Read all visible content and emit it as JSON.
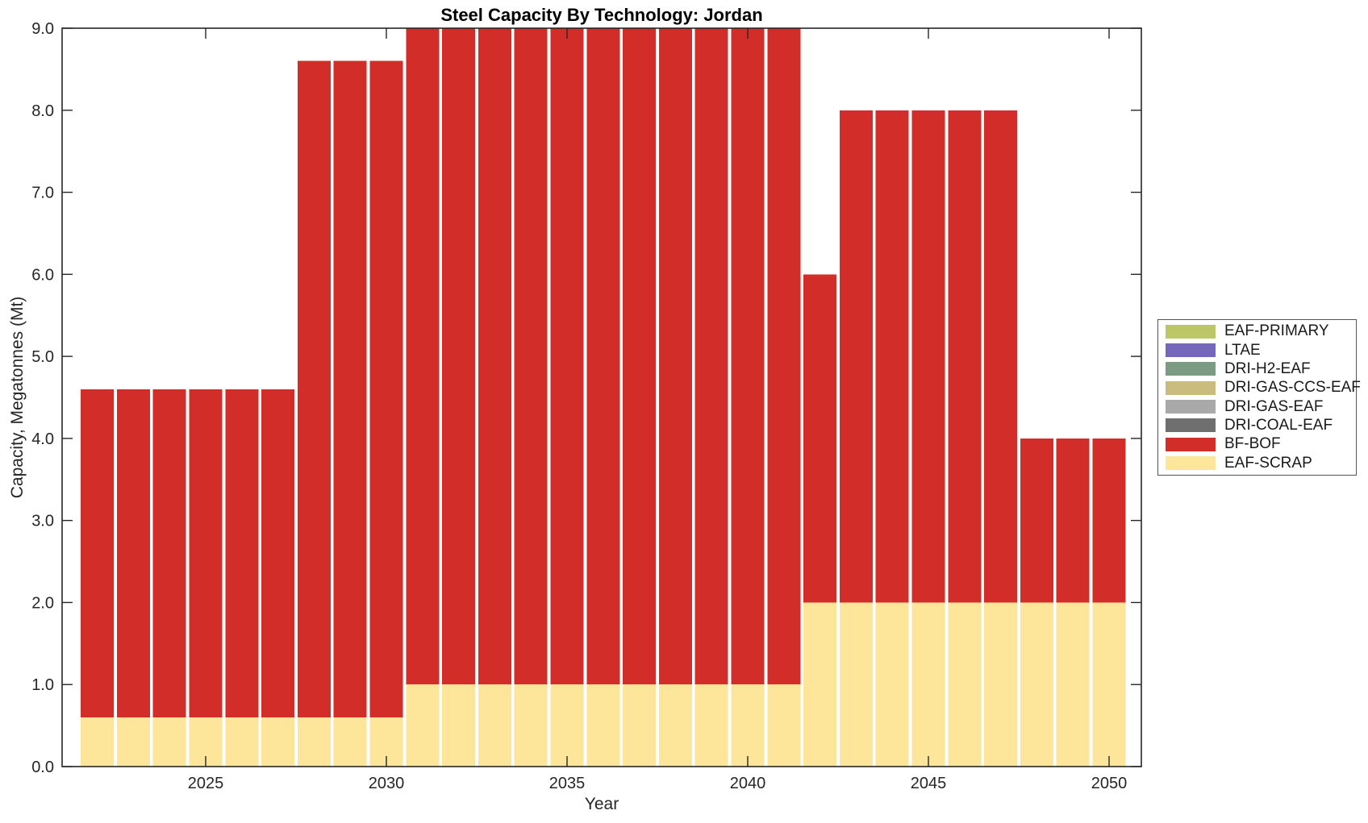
{
  "title": "Steel Capacity By Technology: Jordan",
  "colors": {
    "background": "#ffffff",
    "axis": "#262626",
    "tick_text": "#262626",
    "title_text": "#000000"
  },
  "chart_data": {
    "type": "bar",
    "stacked": true,
    "title": "Steel Capacity By Technology: Jordan",
    "xlabel": "Year",
    "ylabel": "Capacity, Megatonnes (Mt)",
    "x": [
      2022,
      2023,
      2024,
      2025,
      2026,
      2027,
      2028,
      2029,
      2030,
      2031,
      2032,
      2033,
      2034,
      2035,
      2036,
      2037,
      2038,
      2039,
      2040,
      2041,
      2042,
      2043,
      2044,
      2045,
      2046,
      2047,
      2048,
      2049,
      2050
    ],
    "xlim": [
      2021.0,
      2050.9
    ],
    "ylim": [
      0,
      9
    ],
    "yticks": [
      0,
      1,
      2,
      3,
      4,
      5,
      6,
      7,
      8,
      9
    ],
    "ytick_labels": [
      "0.0",
      "1.0",
      "2.0",
      "3.0",
      "4.0",
      "5.0",
      "6.0",
      "7.0",
      "8.0",
      "9.0"
    ],
    "xticks": [
      2025,
      2030,
      2035,
      2040,
      2045,
      2050
    ],
    "xtick_labels": [
      "2025",
      "2030",
      "2035",
      "2040",
      "2045",
      "2050"
    ],
    "grid": false,
    "legend_position": "right-outside",
    "legend_note": "series listed top-to-bottom as in legend; bars stack bottom-to-top in reverse legend order (EAF-SCRAP bottom, BF-BOF above it)",
    "series": [
      {
        "name": "EAF-PRIMARY",
        "color": "#bcc768",
        "values": 0
      },
      {
        "name": "LTAE",
        "color": "#7568bb",
        "values": 0
      },
      {
        "name": "DRI-H2-EAF",
        "color": "#7b9c82",
        "values": 0
      },
      {
        "name": "DRI-GAS-CCS-EAF",
        "color": "#c9bc7d",
        "values": 0
      },
      {
        "name": "DRI-GAS-EAF",
        "color": "#a9a9a9",
        "values": 0
      },
      {
        "name": "DRI-COAL-EAF",
        "color": "#6f6f6f",
        "values": 0
      },
      {
        "name": "BF-BOF",
        "color": "#d22d28",
        "values": [
          4,
          4,
          4,
          4,
          4,
          4,
          8,
          8,
          8,
          8,
          8,
          8,
          8,
          8,
          8,
          8,
          8,
          8,
          8,
          8,
          4,
          6,
          6,
          6,
          6,
          6,
          2,
          2,
          2
        ]
      },
      {
        "name": "EAF-SCRAP",
        "color": "#fde59a",
        "values": [
          0.6,
          0.6,
          0.6,
          0.6,
          0.6,
          0.6,
          0.6,
          0.6,
          0.6,
          1,
          1,
          1,
          1,
          1,
          1,
          1,
          1,
          1,
          1,
          1,
          2,
          2,
          2,
          2,
          2,
          2,
          2,
          2,
          2
        ]
      }
    ],
    "stack_totals_by_period": {
      "2022-2027": 4.6,
      "2028-2030": 8.6,
      "2031-2041": 9.0,
      "2042": 6.0,
      "2043-2047": 8.0,
      "2048-2050": 4.0
    }
  }
}
